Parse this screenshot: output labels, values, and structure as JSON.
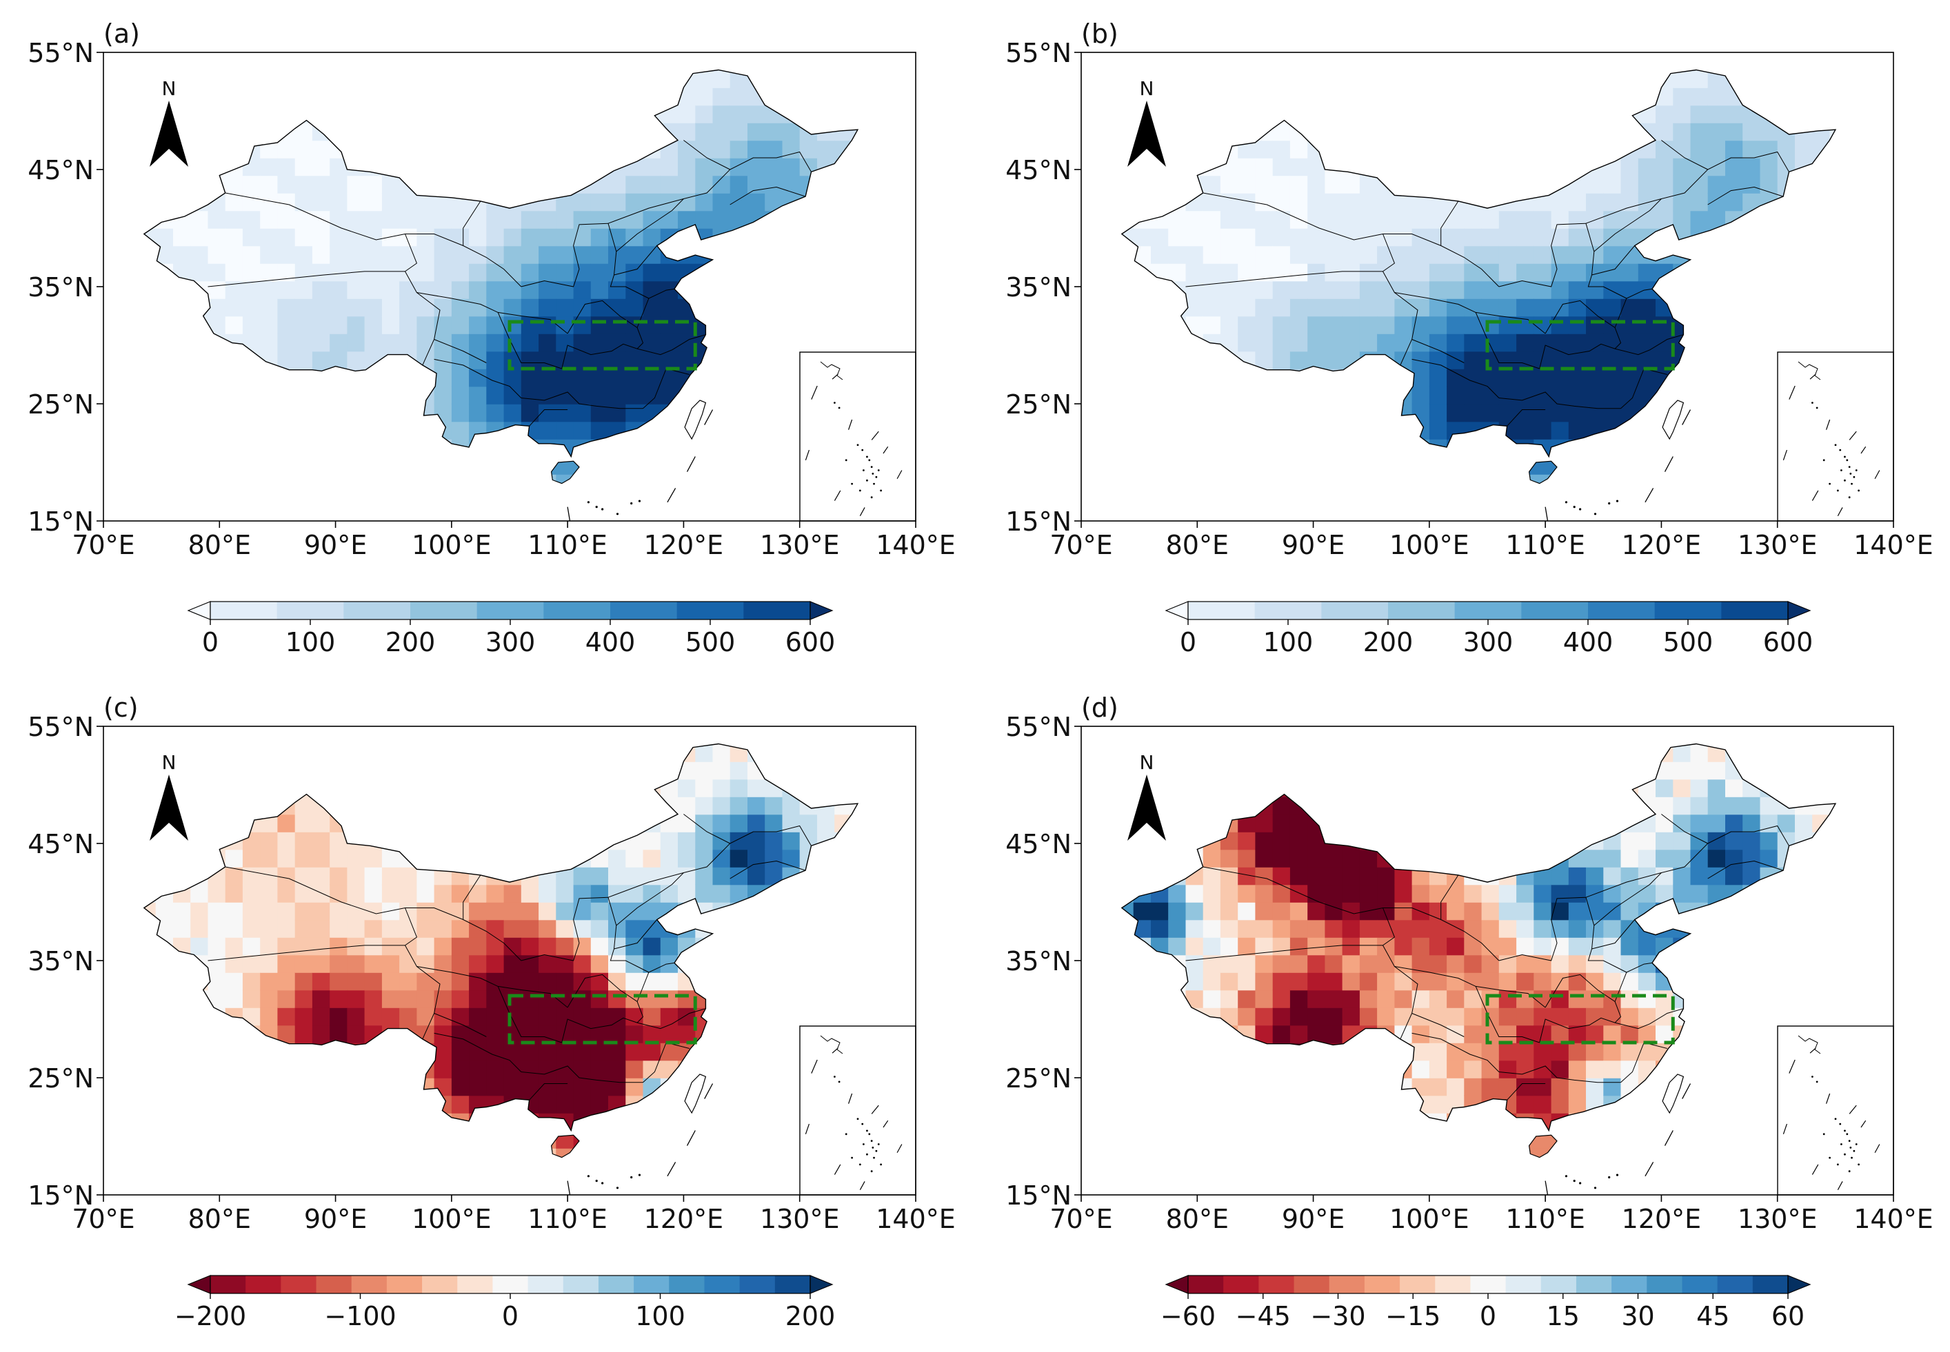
{
  "figure": {
    "panels": [
      {
        "label": "(a)",
        "lat_ticks": [
          "55°N",
          "45°N",
          "35°N",
          "25°N",
          "15°N"
        ],
        "lon_ticks": [
          "70°E",
          "80°E",
          "90°E",
          "100°E",
          "110°E",
          "120°E",
          "130°E",
          "140°E"
        ],
        "north_arrow": "N",
        "colorbar": {
          "ticks": [
            "0",
            "100",
            "200",
            "300",
            "400",
            "500",
            "600"
          ],
          "scheme": "blues",
          "extend": "both"
        },
        "study_box": {
          "lon": [
            105,
            121
          ],
          "lat": [
            28,
            32
          ]
        }
      },
      {
        "label": "(b)",
        "lat_ticks": [
          "55°N",
          "45°N",
          "35°N",
          "25°N",
          "15°N"
        ],
        "lon_ticks": [
          "70°E",
          "80°E",
          "90°E",
          "100°E",
          "110°E",
          "120°E",
          "130°E",
          "140°E"
        ],
        "north_arrow": "N",
        "colorbar": {
          "ticks": [
            "0",
            "100",
            "200",
            "300",
            "400",
            "500",
            "600"
          ],
          "scheme": "blues",
          "extend": "both"
        },
        "study_box": {
          "lon": [
            105,
            121
          ],
          "lat": [
            28,
            32
          ]
        }
      },
      {
        "label": "(c)",
        "lat_ticks": [
          "55°N",
          "45°N",
          "35°N",
          "25°N",
          "15°N"
        ],
        "lon_ticks": [
          "70°E",
          "80°E",
          "90°E",
          "100°E",
          "110°E",
          "120°E",
          "130°E",
          "140°E"
        ],
        "north_arrow": "N",
        "colorbar": {
          "ticks": [
            "−200",
            "−100",
            "0",
            "100",
            "200"
          ],
          "scheme": "diverging",
          "extend": "both"
        },
        "study_box": {
          "lon": [
            105,
            121
          ],
          "lat": [
            28,
            32
          ]
        }
      },
      {
        "label": "(d)",
        "lat_ticks": [
          "55°N",
          "45°N",
          "35°N",
          "25°N",
          "15°N"
        ],
        "lon_ticks": [
          "70°E",
          "80°E",
          "90°E",
          "100°E",
          "110°E",
          "120°E",
          "130°E",
          "140°E"
        ],
        "north_arrow": "N",
        "colorbar": {
          "ticks": [
            "−60",
            "−45",
            "−30",
            "−15",
            "0",
            "15",
            "30",
            "45",
            "60"
          ],
          "scheme": "diverging",
          "extend": "both"
        },
        "study_box": {
          "lon": [
            105,
            121
          ],
          "lat": [
            28,
            32
          ]
        }
      }
    ],
    "colors": {
      "blues": [
        "#f7fbff",
        "#e3eef9",
        "#cfe1f2",
        "#b5d4e9",
        "#93c4de",
        "#6aaed6",
        "#4a98c9",
        "#2e7ebc",
        "#1764ab",
        "#0a4a90",
        "#08306b"
      ],
      "diverging": [
        "#67001f",
        "#8f0a25",
        "#b2182b",
        "#c9383a",
        "#d6604d",
        "#e8896b",
        "#f4a582",
        "#f9c8ad",
        "#fbe3d4",
        "#f7f7f7",
        "#e0ecf4",
        "#c2ddec",
        "#92c5de",
        "#6aaed6",
        "#4393c3",
        "#2e7ebc",
        "#2166ac",
        "#104d8f",
        "#053061"
      ],
      "box": "#1a8a1a"
    }
  }
}
